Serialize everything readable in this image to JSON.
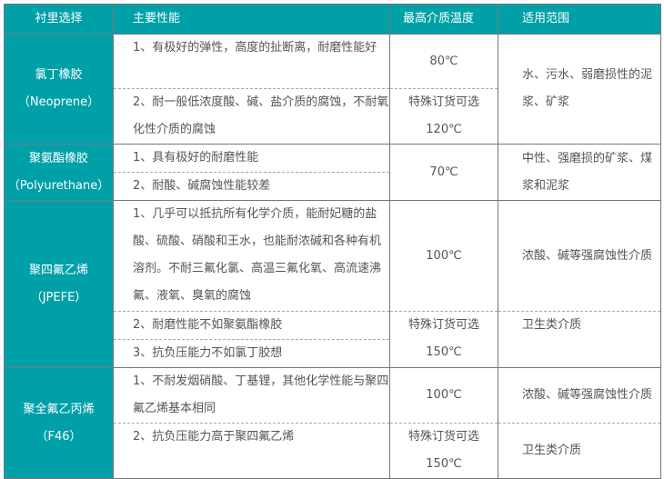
{
  "header": [
    "衬里选择",
    "主要性能",
    "最高介质温度",
    "适用范围"
  ],
  "groups": [
    {
      "name": "氯丁橡胶",
      "en": "（Neoprene）",
      "props": [
        "1、有极好的弹性，高度的扯断离，耐磨性能好",
        "2、耐一般低浓度酸、碱、盐介质的腐蚀，不耐氧化性介质的腐蚀"
      ],
      "temps": [
        "80℃",
        "特殊订货可选",
        "120℃"
      ],
      "use": [
        "水、污水、弱磨损性的泥浆、矿浆"
      ]
    },
    {
      "name": "聚氨酯橡胶",
      "en": "（Polyurethane）",
      "props": [
        "1、具有极好的耐磨性能",
        "2、耐酸、碱腐蚀性能较差"
      ],
      "temps": [
        "70℃"
      ],
      "use": [
        "中性、强磨损的矿浆、煤浆和泥浆"
      ]
    },
    {
      "name": "聚四氟乙烯",
      "en": "（JPEFE）",
      "props": [
        "1、几乎可以抵抗所有化学介质，能耐妃糖的盐酸、硫酸、硝酸和王水，也能耐浓碱和各种有机溶剂。不耐三氟化氯、高温三氟化氧、高流速沸氟、液氧、臭氧的腐蚀",
        "2、耐磨性能不如聚氨酯橡胶",
        "3、抗负压能力不如氯丁胶想"
      ],
      "temps": [
        "100℃",
        "特殊订货可选",
        "150℃"
      ],
      "use": [
        "浓酸、碱等强腐蚀性介质",
        "卫生类介质"
      ]
    },
    {
      "name": "聚全氟乙丙烯",
      "en": "（F46）",
      "props": [
        "1、不耐发烟硝酸、丁基锂，其他化学性能与聚四氟乙烯基本相同",
        "2、抗负压能力高于聚四氟乙烯"
      ],
      "temps": [
        "100℃",
        "特殊订货可选",
        "150℃"
      ],
      "use": [
        "浓酸、碱等强腐蚀性介质",
        "卫生类介质"
      ]
    }
  ],
  "colors": {
    "header_bg": "#00a0a8",
    "text": "#555555"
  }
}
